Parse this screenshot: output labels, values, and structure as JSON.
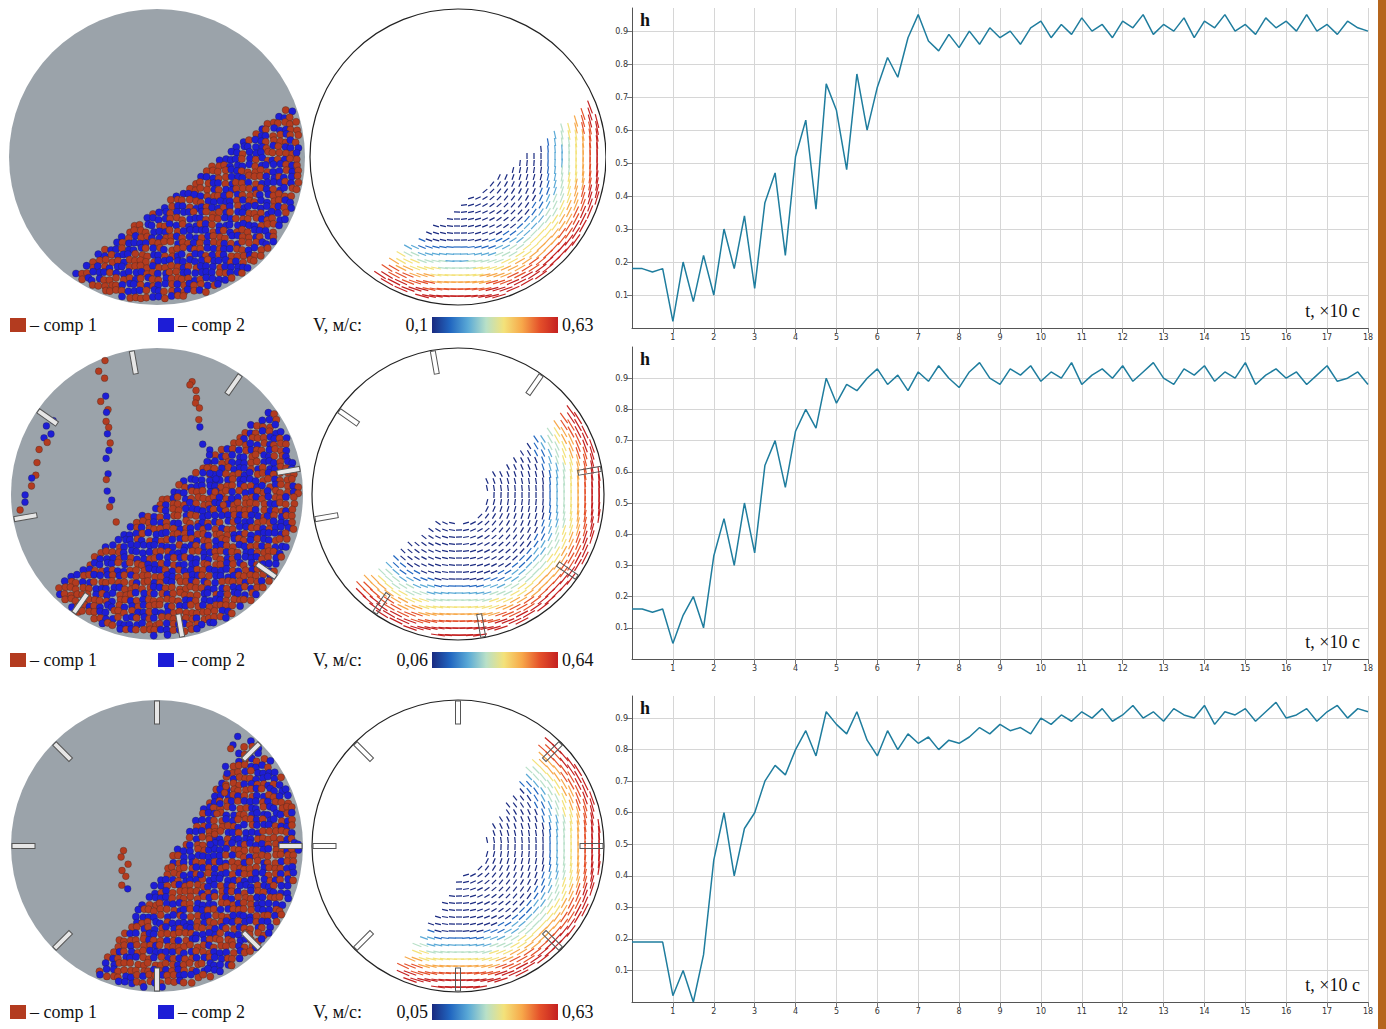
{
  "rows": [
    {
      "legend": [
        {
          "label": "– comp 1",
          "color": "#b33b1f"
        },
        {
          "label": "– comp 2",
          "color": "#1d1dd6"
        }
      ],
      "lifters": 0,
      "colorbar": {
        "title": "V, м/с:",
        "range": [
          {
            "value": 0.1,
            "label": "0,1"
          },
          {
            "value": 0.63,
            "label": "0,63"
          }
        ]
      }
    },
    {
      "legend": [
        {
          "label": "– comp 1",
          "color": "#b33b1f"
        },
        {
          "label": "– comp 2",
          "color": "#1d1dd6"
        }
      ],
      "lifters": 8,
      "colorbar": {
        "title": "V, м/с:",
        "range": [
          {
            "value": 0.06,
            "label": "0,06"
          },
          {
            "value": 0.64,
            "label": "0,64"
          }
        ]
      }
    },
    {
      "legend": [
        {
          "label": "– comp 1",
          "color": "#b33b1f"
        },
        {
          "label": "– comp 2",
          "color": "#1d1dd6"
        }
      ],
      "lifters": 8,
      "colorbar": {
        "title": "V, м/с:",
        "range": [
          {
            "value": 0.05,
            "label": "0,05"
          },
          {
            "value": 0.63,
            "label": "0,63"
          }
        ]
      }
    }
  ],
  "chart_data": [
    {
      "type": "line",
      "y_label": "h",
      "x_label": "t, ×10 с",
      "color": "#1f7d9e",
      "grid": true,
      "xlim": [
        0,
        18
      ],
      "xticks": [
        1,
        2,
        3,
        4,
        5,
        6,
        7,
        8,
        9,
        10,
        11,
        12,
        13,
        14,
        15,
        16,
        17,
        18
      ],
      "ylim": [
        0,
        0.97
      ],
      "yticks": [
        0.1,
        0.2,
        0.3,
        0.4,
        0.5,
        0.6,
        0.7,
        0.8,
        0.9
      ],
      "x": [
        0,
        0.25,
        0.5,
        0.75,
        1,
        1.25,
        1.5,
        1.75,
        2,
        2.25,
        2.5,
        2.75,
        3,
        3.25,
        3.5,
        3.75,
        4,
        4.25,
        4.5,
        4.75,
        5,
        5.25,
        5.5,
        5.75,
        6,
        6.25,
        6.5,
        6.75,
        7,
        7.25,
        7.5,
        7.75,
        8,
        8.25,
        8.5,
        8.75,
        9,
        9.25,
        9.5,
        9.75,
        10,
        10.25,
        10.5,
        10.75,
        11,
        11.25,
        11.5,
        11.75,
        12,
        12.25,
        12.5,
        12.75,
        13,
        13.25,
        13.5,
        13.75,
        14,
        14.25,
        14.5,
        14.75,
        15,
        15.25,
        15.5,
        15.75,
        16,
        16.25,
        16.5,
        16.75,
        17,
        17.25,
        17.5,
        17.75,
        18
      ],
      "values": [
        0.18,
        0.18,
        0.17,
        0.18,
        0.02,
        0.2,
        0.08,
        0.22,
        0.1,
        0.3,
        0.18,
        0.34,
        0.12,
        0.38,
        0.47,
        0.22,
        0.52,
        0.63,
        0.36,
        0.74,
        0.66,
        0.48,
        0.77,
        0.6,
        0.73,
        0.82,
        0.76,
        0.88,
        0.95,
        0.87,
        0.84,
        0.89,
        0.85,
        0.9,
        0.86,
        0.91,
        0.88,
        0.9,
        0.86,
        0.91,
        0.93,
        0.88,
        0.92,
        0.89,
        0.94,
        0.9,
        0.92,
        0.88,
        0.93,
        0.91,
        0.95,
        0.89,
        0.92,
        0.9,
        0.94,
        0.88,
        0.93,
        0.91,
        0.95,
        0.9,
        0.92,
        0.89,
        0.94,
        0.91,
        0.93,
        0.9,
        0.95,
        0.9,
        0.92,
        0.89,
        0.93,
        0.91,
        0.9
      ]
    },
    {
      "type": "line",
      "y_label": "h",
      "x_label": "t, ×10 с",
      "color": "#1f7d9e",
      "grid": true,
      "xlim": [
        0,
        18
      ],
      "xticks": [
        1,
        2,
        3,
        4,
        5,
        6,
        7,
        8,
        9,
        10,
        11,
        12,
        13,
        14,
        15,
        16,
        17,
        18
      ],
      "ylim": [
        0,
        1.0
      ],
      "yticks": [
        0.1,
        0.2,
        0.3,
        0.4,
        0.5,
        0.6,
        0.7,
        0.8,
        0.9
      ],
      "x": [
        0,
        0.25,
        0.5,
        0.75,
        1,
        1.25,
        1.5,
        1.75,
        2,
        2.25,
        2.5,
        2.75,
        3,
        3.25,
        3.5,
        3.75,
        4,
        4.25,
        4.5,
        4.75,
        5,
        5.25,
        5.5,
        5.75,
        6,
        6.25,
        6.5,
        6.75,
        7,
        7.25,
        7.5,
        7.75,
        8,
        8.25,
        8.5,
        8.75,
        9,
        9.25,
        9.5,
        9.75,
        10,
        10.25,
        10.5,
        10.75,
        11,
        11.25,
        11.5,
        11.75,
        12,
        12.25,
        12.5,
        12.75,
        13,
        13.25,
        13.5,
        13.75,
        14,
        14.25,
        14.5,
        14.75,
        15,
        15.25,
        15.5,
        15.75,
        16,
        16.25,
        16.5,
        16.75,
        17,
        17.25,
        17.5,
        17.75,
        18
      ],
      "values": [
        0.16,
        0.16,
        0.15,
        0.16,
        0.05,
        0.14,
        0.2,
        0.1,
        0.33,
        0.45,
        0.3,
        0.5,
        0.34,
        0.62,
        0.7,
        0.55,
        0.73,
        0.8,
        0.74,
        0.9,
        0.82,
        0.88,
        0.86,
        0.9,
        0.93,
        0.88,
        0.91,
        0.86,
        0.92,
        0.89,
        0.94,
        0.9,
        0.87,
        0.92,
        0.95,
        0.9,
        0.88,
        0.93,
        0.91,
        0.94,
        0.89,
        0.92,
        0.9,
        0.95,
        0.88,
        0.91,
        0.93,
        0.9,
        0.94,
        0.89,
        0.92,
        0.95,
        0.9,
        0.88,
        0.93,
        0.91,
        0.94,
        0.89,
        0.92,
        0.9,
        0.95,
        0.88,
        0.91,
        0.93,
        0.9,
        0.92,
        0.88,
        0.91,
        0.94,
        0.89,
        0.9,
        0.92,
        0.88
      ]
    },
    {
      "type": "line",
      "y_label": "h",
      "x_label": "t, ×10 с",
      "color": "#1f7d9e",
      "grid": true,
      "xlim": [
        0,
        18
      ],
      "xticks": [
        1,
        2,
        3,
        4,
        5,
        6,
        7,
        8,
        9,
        10,
        11,
        12,
        13,
        14,
        15,
        16,
        17,
        18
      ],
      "ylim": [
        0,
        0.97
      ],
      "yticks": [
        0.1,
        0.2,
        0.3,
        0.4,
        0.5,
        0.6,
        0.7,
        0.8,
        0.9
      ],
      "x": [
        0,
        0.25,
        0.5,
        0.75,
        1,
        1.25,
        1.5,
        1.75,
        2,
        2.25,
        2.5,
        2.75,
        3,
        3.25,
        3.5,
        3.75,
        4,
        4.25,
        4.5,
        4.75,
        5,
        5.25,
        5.5,
        5.75,
        6,
        6.25,
        6.5,
        6.75,
        7,
        7.25,
        7.5,
        7.75,
        8,
        8.25,
        8.5,
        8.75,
        9,
        9.25,
        9.5,
        9.75,
        10,
        10.25,
        10.5,
        10.75,
        11,
        11.25,
        11.5,
        11.75,
        12,
        12.25,
        12.5,
        12.75,
        13,
        13.25,
        13.5,
        13.75,
        14,
        14.25,
        14.5,
        14.75,
        15,
        15.25,
        15.5,
        15.75,
        16,
        16.25,
        16.5,
        16.75,
        17,
        17.25,
        17.5,
        17.75,
        18
      ],
      "values": [
        0.19,
        0.19,
        0.19,
        0.19,
        0.02,
        0.1,
        0.0,
        0.15,
        0.45,
        0.6,
        0.4,
        0.55,
        0.6,
        0.7,
        0.75,
        0.72,
        0.8,
        0.86,
        0.78,
        0.92,
        0.88,
        0.85,
        0.92,
        0.83,
        0.78,
        0.86,
        0.8,
        0.85,
        0.82,
        0.84,
        0.8,
        0.83,
        0.82,
        0.84,
        0.87,
        0.85,
        0.88,
        0.86,
        0.87,
        0.85,
        0.9,
        0.88,
        0.91,
        0.89,
        0.92,
        0.9,
        0.93,
        0.89,
        0.91,
        0.94,
        0.9,
        0.92,
        0.89,
        0.93,
        0.91,
        0.9,
        0.94,
        0.88,
        0.92,
        0.91,
        0.93,
        0.89,
        0.92,
        0.95,
        0.9,
        0.91,
        0.93,
        0.89,
        0.92,
        0.94,
        0.9,
        0.93,
        0.92
      ]
    }
  ]
}
